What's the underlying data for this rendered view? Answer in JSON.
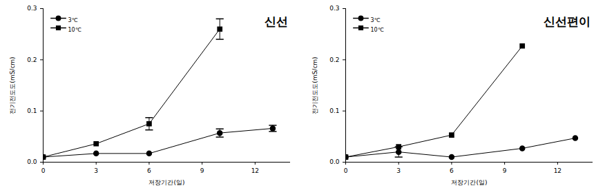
{
  "chart_data": [
    {
      "type": "line",
      "title": "신선",
      "x_label": "저장기간(일)",
      "y_label": "전기전도도(mS/cm)",
      "x": [
        0,
        3,
        6,
        10,
        13
      ],
      "xlim": [
        0,
        14
      ],
      "xticks": [
        0,
        3,
        6,
        9,
        12
      ],
      "ylim": [
        0,
        0.3
      ],
      "yticks": [
        {
          "value": 0,
          "label": "0.0"
        },
        0.1,
        0.2,
        0.3
      ],
      "legend": "upper left",
      "series": [
        {
          "name": "3℃",
          "color": "#000000",
          "marker": "circle",
          "values": [
            0.01,
            0.017,
            0.017,
            0.057,
            0.066
          ],
          "errors": [
            null,
            null,
            null,
            0.008,
            0.006
          ]
        },
        {
          "name": "10℃",
          "color": "#000000",
          "marker": "square",
          "values": [
            0.01,
            0.036,
            0.075,
            0.26,
            null
          ],
          "errors": [
            null,
            null,
            0.012,
            0.02,
            null
          ]
        }
      ]
    },
    {
      "type": "line",
      "title": "신선편이",
      "x_label": "저장기간(일)",
      "y_label": "전기전도도(mS/cm)",
      "x": [
        0,
        3,
        6,
        10,
        13
      ],
      "xlim": [
        0,
        14
      ],
      "xticks": [
        0,
        3,
        6,
        9,
        12
      ],
      "ylim": [
        0,
        0.3
      ],
      "yticks": [
        {
          "value": 0,
          "label": "0.0"
        },
        0.1,
        0.2,
        0.3
      ],
      "legend": "upper left",
      "series": [
        {
          "name": "3℃",
          "color": "#000000",
          "marker": "circle",
          "values": [
            0.01,
            0.02,
            0.01,
            0.027,
            0.047
          ],
          "errors": [
            null,
            0.01,
            null,
            null,
            null
          ]
        },
        {
          "name": "10℃",
          "color": "#000000",
          "marker": "square",
          "values": [
            0.01,
            0.03,
            0.053,
            0.227,
            null
          ],
          "errors": [
            null,
            null,
            null,
            null,
            null
          ]
        }
      ]
    }
  ]
}
